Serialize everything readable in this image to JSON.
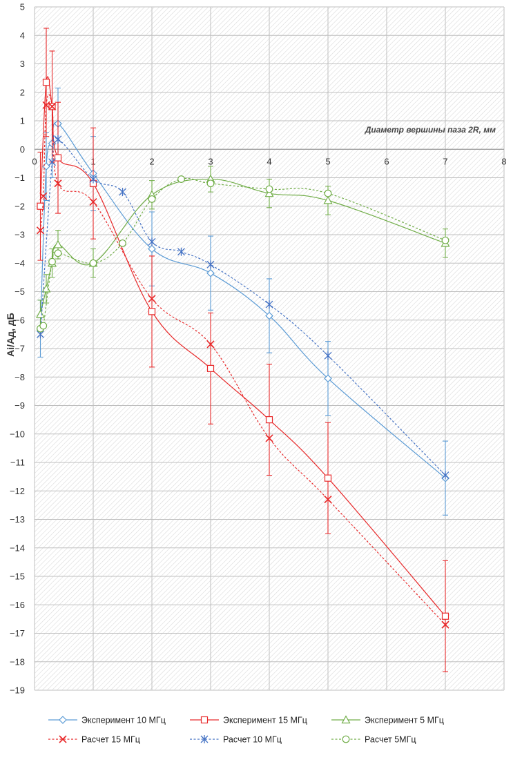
{
  "chart_data": {
    "type": "line",
    "xlabel": "Диаметр вершины паза 2R, мм",
    "ylabel": "Ai/Aд, дБ",
    "xlim": [
      0,
      8
    ],
    "ylim": [
      -19,
      5
    ],
    "x_ticks": [
      0,
      1,
      2,
      3,
      4,
      5,
      6,
      7,
      8
    ],
    "y_ticks": [
      5,
      4,
      3,
      2,
      1,
      0,
      -1,
      -2,
      -3,
      -4,
      -5,
      -6,
      -7,
      -8,
      -9,
      -10,
      -11,
      -12,
      -13,
      -14,
      -15,
      -16,
      -17,
      -18,
      -19
    ],
    "grid": true,
    "legend_position": "bottom",
    "series": [
      {
        "name": "Эксперимент 10 МГц",
        "color": "#5b9bd5",
        "marker": "diamond",
        "line": "solid",
        "x": [
          0.1,
          0.2,
          0.3,
          0.4,
          1,
          2,
          3,
          4,
          5,
          7
        ],
        "y": [
          -6.3,
          -0.6,
          0.2,
          0.9,
          -0.85,
          -3.5,
          -4.35,
          -5.85,
          -8.05,
          -11.55
        ],
        "error": [
          1.0,
          1.2,
          1.2,
          1.25,
          1.3,
          1.3,
          1.3,
          1.3,
          1.3,
          1.3
        ]
      },
      {
        "name": "Эксперимент 15 МГц",
        "color": "#e8292a",
        "marker": "square",
        "line": "solid",
        "x": [
          0.1,
          0.2,
          0.3,
          0.4,
          1,
          2,
          3,
          4,
          5,
          7
        ],
        "y": [
          -2.0,
          2.35,
          1.5,
          -0.3,
          -1.2,
          -5.7,
          -7.7,
          -9.5,
          -11.55,
          -16.4
        ],
        "error": [
          1.9,
          1.9,
          1.95,
          1.95,
          1.95,
          1.95,
          1.95,
          1.95,
          1.95,
          1.95
        ]
      },
      {
        "name": "Эксперимент 5 МГц",
        "color": "#70ad47",
        "marker": "triangle",
        "line": "solid",
        "x": [
          0.1,
          0.2,
          0.3,
          0.4,
          1,
          2,
          3,
          4,
          5,
          7
        ],
        "y": [
          -5.8,
          -4.9,
          -4.0,
          -3.35,
          -4.0,
          -1.6,
          -1.05,
          -1.55,
          -1.8,
          -3.3
        ],
        "error": [
          0.5,
          0.5,
          0.5,
          0.5,
          0.5,
          0.5,
          0.45,
          0.5,
          0.5,
          0.5
        ]
      },
      {
        "name": "Расчет 15 МГц",
        "color": "#e8292a",
        "marker": "x",
        "line": "dotted",
        "x": [
          0.1,
          0.15,
          0.2,
          0.3,
          0.4,
          1,
          2,
          3,
          4,
          5,
          7
        ],
        "y": [
          -2.85,
          -1.65,
          1.55,
          1.5,
          -1.2,
          -1.85,
          -5.25,
          -6.85,
          -10.15,
          -12.3,
          -16.7
        ]
      },
      {
        "name": "Расчет 10 МГц",
        "color": "#4472c4",
        "marker": "asterisk",
        "line": "dotted",
        "x": [
          0.1,
          0.3,
          0.4,
          1,
          1.5,
          2,
          2.5,
          3,
          4,
          5,
          7
        ],
        "y": [
          -6.5,
          -0.45,
          0.35,
          -1.05,
          -1.5,
          -3.25,
          -3.6,
          -4.05,
          -5.45,
          -7.25,
          -11.45
        ]
      },
      {
        "name": "Расчет 5МГц",
        "color": "#70ad47",
        "marker": "circle",
        "line": "dotted",
        "x": [
          0.1,
          0.15,
          0.3,
          0.4,
          1,
          1.5,
          2,
          2.5,
          3,
          4,
          5,
          7
        ],
        "y": [
          -6.3,
          -6.2,
          -3.95,
          -3.65,
          -4.0,
          -3.3,
          -1.75,
          -1.05,
          -1.2,
          -1.4,
          -1.55,
          -3.2
        ]
      }
    ]
  }
}
